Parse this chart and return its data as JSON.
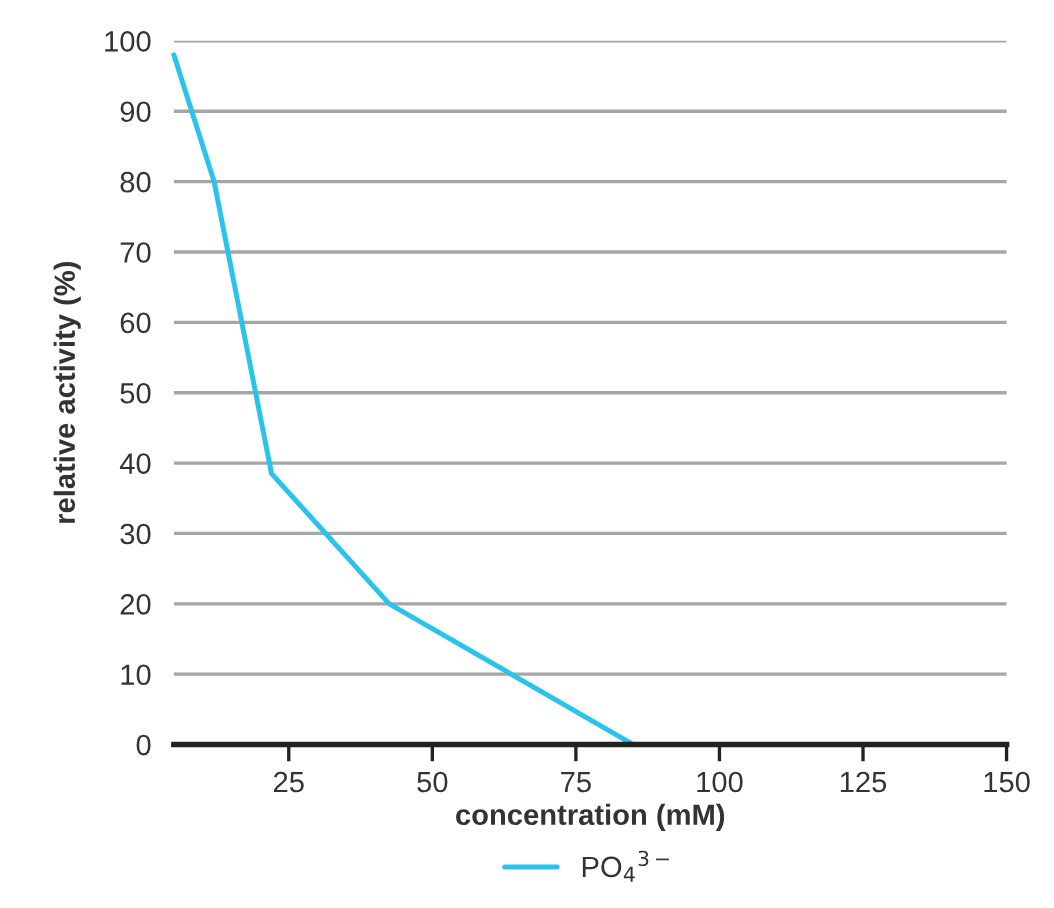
{
  "chart_data": {
    "type": "line",
    "xlabel": "concentration (mM)",
    "ylabel": "relative activity (%)",
    "x": [
      5,
      12,
      22,
      42.5,
      85
    ],
    "series": [
      {
        "name": "PO$_{4}$$^{3−}$",
        "color": "#29c3ec",
        "values": [
          98,
          80,
          38.5,
          20,
          0
        ]
      }
    ],
    "xlim": [
      5,
      150
    ],
    "xticks": [
      25,
      50,
      75,
      100,
      125,
      150
    ],
    "ylim": [
      0,
      100
    ],
    "yticks": [
      0,
      10,
      20,
      30,
      40,
      50,
      60,
      70,
      80,
      90,
      100
    ],
    "grid": "y",
    "legend": "bottom",
    "marker": "none",
    "line_style": "solid"
  }
}
